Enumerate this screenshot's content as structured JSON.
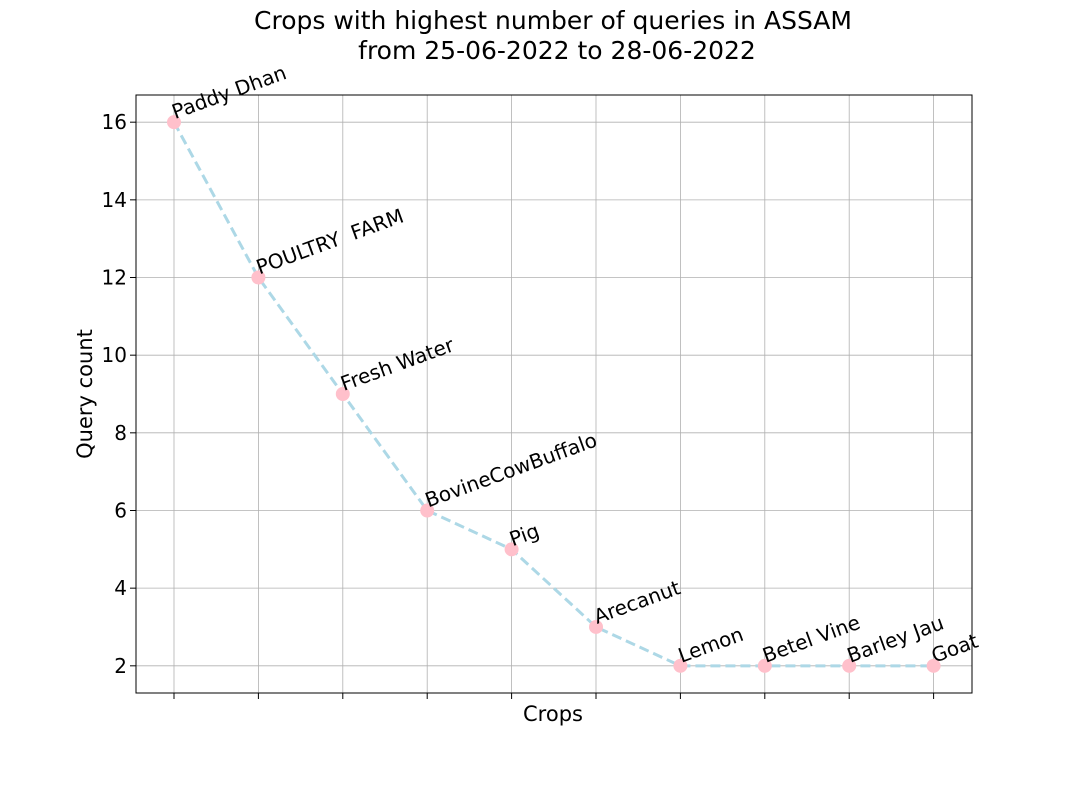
{
  "chart_data": {
    "type": "line",
    "title": "Crops with highest number of queries in ASSAM",
    "subtitle": "from 25-06-2022 to 28-06-2022",
    "xlabel": "Crops",
    "ylabel": "Query count",
    "categories": [
      "Paddy Dhan",
      "POULTRY  FARM",
      "Fresh Water",
      "BovineCowBuffalo",
      "Pig",
      "Arecanut",
      "Lemon",
      "Betel Vine",
      "Barley Jau",
      "Goat"
    ],
    "values": [
      16,
      12,
      9,
      6,
      5,
      3,
      2,
      2,
      2,
      2
    ],
    "yticks": [
      2,
      4,
      6,
      8,
      10,
      12,
      14,
      16
    ],
    "ylim": [
      1.3,
      16.7
    ],
    "grid": true,
    "line_color": "#add8e6",
    "line_style": "dashed",
    "marker_color": "#ffc0cb"
  }
}
